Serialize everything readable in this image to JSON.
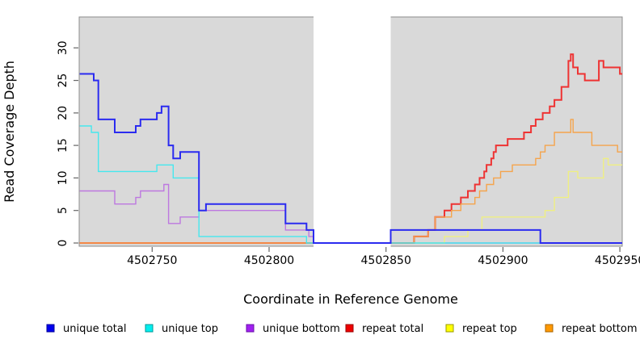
{
  "chart_data": {
    "type": "line",
    "line_style": "step",
    "title": "",
    "xlabel": "Coordinate in Reference Genome",
    "ylabel": "Read Coverage Depth",
    "x_ticks": [
      4502750,
      4502800,
      4502850,
      4502900,
      4502950
    ],
    "y_ticks": [
      0,
      5,
      10,
      15,
      20,
      25,
      30
    ],
    "x_range": [
      4502719,
      4502951
    ],
    "y_range": [
      0,
      35
    ],
    "grid": false,
    "legend_position": "bottom",
    "page_background": "#ffffff",
    "plot_background": "#d9d9d9",
    "plot_border_color": "#8c8c8c",
    "tick_color": "#666666",
    "gap_region": {
      "x_start": 4502819,
      "x_end": 4502852,
      "color": "#ffffff"
    },
    "series": [
      {
        "legend_label": "unique total",
        "line_color": "#2b2bf0",
        "legend_fill": "#0000ee",
        "legend_border": "#00009a",
        "line_width": 2,
        "points": [
          [
            4502719,
            26
          ],
          [
            4502725,
            25
          ],
          [
            4502727,
            19
          ],
          [
            4502734,
            17
          ],
          [
            4502743,
            18
          ],
          [
            4502745,
            19
          ],
          [
            4502752,
            20
          ],
          [
            4502754,
            21
          ],
          [
            4502757,
            15
          ],
          [
            4502759,
            13
          ],
          [
            4502762,
            14
          ],
          [
            4502770,
            5
          ],
          [
            4502773,
            6
          ],
          [
            4502807,
            3
          ],
          [
            4502816,
            2
          ],
          [
            4502819,
            0
          ],
          [
            4502852,
            2
          ],
          [
            4502916,
            0
          ]
        ]
      },
      {
        "legend_label": "unique top",
        "line_color": "#45e8ee",
        "legend_fill": "#00eeee",
        "legend_border": "#009a9a",
        "line_width": 1.4,
        "points": [
          [
            4502719,
            18
          ],
          [
            4502724,
            17
          ],
          [
            4502727,
            11
          ],
          [
            4502752,
            12
          ],
          [
            4502759,
            10
          ],
          [
            4502770,
            1
          ],
          [
            4502816,
            0
          ]
        ]
      },
      {
        "legend_label": "unique bottom",
        "line_color": "#bd78e0",
        "legend_fill": "#a020f0",
        "legend_border": "#6a11a8",
        "line_width": 1.4,
        "points": [
          [
            4502719,
            8
          ],
          [
            4502734,
            6
          ],
          [
            4502743,
            7
          ],
          [
            4502745,
            8
          ],
          [
            4502755,
            9
          ],
          [
            4502757,
            3
          ],
          [
            4502762,
            4
          ],
          [
            4502770,
            5
          ],
          [
            4502807,
            2
          ],
          [
            4502817,
            1
          ],
          [
            4502819,
            0
          ]
        ]
      },
      {
        "legend_label": "repeat total",
        "line_color": "#ee3333",
        "legend_fill": "#ee0000",
        "legend_border": "#9a0000",
        "line_width": 2,
        "points": [
          [
            4502719,
            0
          ],
          [
            4502862,
            1
          ],
          [
            4502868,
            2
          ],
          [
            4502871,
            4
          ],
          [
            4502875,
            5
          ],
          [
            4502878,
            6
          ],
          [
            4502882,
            7
          ],
          [
            4502885,
            8
          ],
          [
            4502888,
            9
          ],
          [
            4502890,
            10
          ],
          [
            4502892,
            11
          ],
          [
            4502893,
            12
          ],
          [
            4502895,
            13
          ],
          [
            4502896,
            14
          ],
          [
            4502897,
            15
          ],
          [
            4502902,
            16
          ],
          [
            4502909,
            17
          ],
          [
            4502912,
            18
          ],
          [
            4502914,
            19
          ],
          [
            4502917,
            20
          ],
          [
            4502920,
            21
          ],
          [
            4502922,
            22
          ],
          [
            4502925,
            24
          ],
          [
            4502928,
            28
          ],
          [
            4502929,
            29
          ],
          [
            4502930,
            27
          ],
          [
            4502932,
            26
          ],
          [
            4502935,
            25
          ],
          [
            4502941,
            28
          ],
          [
            4502943,
            27
          ],
          [
            4502950,
            26
          ]
        ]
      },
      {
        "legend_label": "repeat top",
        "line_color": "#efef82",
        "legend_fill": "#ffff00",
        "legend_border": "#9a9a00",
        "line_width": 1.4,
        "points": [
          [
            4502719,
            0
          ],
          [
            4502875,
            1
          ],
          [
            4502885,
            2
          ],
          [
            4502891,
            4
          ],
          [
            4502918,
            5
          ],
          [
            4502922,
            7
          ],
          [
            4502928,
            11
          ],
          [
            4502932,
            10
          ],
          [
            4502943,
            13
          ],
          [
            4502945,
            12
          ]
        ]
      },
      {
        "legend_label": "repeat bottom",
        "line_color": "#f5a44c",
        "legend_fill": "#ff9900",
        "legend_border": "#a86400",
        "line_width": 1.4,
        "points": [
          [
            4502719,
            0
          ],
          [
            4502862,
            1
          ],
          [
            4502868,
            2
          ],
          [
            4502871,
            4
          ],
          [
            4502878,
            5
          ],
          [
            4502882,
            6
          ],
          [
            4502888,
            7
          ],
          [
            4502890,
            8
          ],
          [
            4502893,
            9
          ],
          [
            4502896,
            10
          ],
          [
            4502899,
            11
          ],
          [
            4502904,
            12
          ],
          [
            4502914,
            13
          ],
          [
            4502916,
            14
          ],
          [
            4502918,
            15
          ],
          [
            4502922,
            17
          ],
          [
            4502929,
            19
          ],
          [
            4502930,
            17
          ],
          [
            4502938,
            15
          ],
          [
            4502949,
            14
          ]
        ]
      }
    ]
  }
}
